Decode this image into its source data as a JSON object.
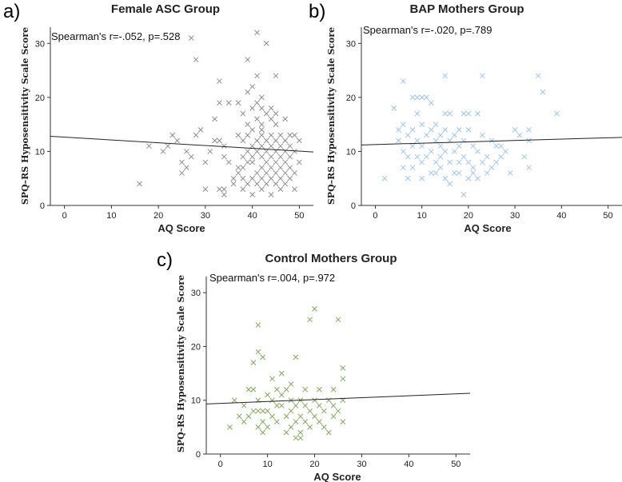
{
  "chart_data": [
    {
      "type": "scatter",
      "panel": "a)",
      "title": "Female ASC Group",
      "xlabel": "AQ Score",
      "ylabel": "SPQ–RS Hyposensitivity Scale Score",
      "annotation": "Spearman's r=-.052, p=.528",
      "xticks": [
        0,
        10,
        20,
        30,
        40,
        50
      ],
      "yticks": [
        0,
        10,
        20,
        30
      ],
      "xlim": [
        -3,
        53
      ],
      "ylim": [
        0,
        33
      ],
      "marker_color": "#8c8c8c",
      "regression": {
        "x0": -3,
        "y0": 12.8,
        "x1": 53,
        "y1": 9.9
      },
      "points": [
        [
          16,
          4
        ],
        [
          18,
          11
        ],
        [
          21,
          10
        ],
        [
          22,
          11
        ],
        [
          23,
          13
        ],
        [
          24,
          12
        ],
        [
          25,
          6
        ],
        [
          25,
          8
        ],
        [
          26,
          7
        ],
        [
          26,
          10
        ],
        [
          27,
          31
        ],
        [
          27,
          9
        ],
        [
          28,
          13
        ],
        [
          28,
          27
        ],
        [
          29,
          14
        ],
        [
          30,
          3
        ],
        [
          30,
          8
        ],
        [
          31,
          10
        ],
        [
          32,
          12
        ],
        [
          32,
          16
        ],
        [
          33,
          12
        ],
        [
          33,
          19
        ],
        [
          33,
          23
        ],
        [
          33,
          3
        ],
        [
          34,
          3
        ],
        [
          34,
          2
        ],
        [
          34,
          9
        ],
        [
          34,
          11
        ],
        [
          35,
          19
        ],
        [
          35,
          8
        ],
        [
          36,
          4
        ],
        [
          36,
          5
        ],
        [
          37,
          6
        ],
        [
          37,
          7
        ],
        [
          37,
          19
        ],
        [
          37,
          13
        ],
        [
          38,
          5
        ],
        [
          38,
          7
        ],
        [
          38,
          9
        ],
        [
          38,
          12
        ],
        [
          38,
          17
        ],
        [
          38,
          3
        ],
        [
          39,
          4
        ],
        [
          39,
          8
        ],
        [
          39,
          10
        ],
        [
          39,
          13
        ],
        [
          39,
          15
        ],
        [
          39,
          21
        ],
        [
          39,
          27
        ],
        [
          40,
          2
        ],
        [
          40,
          5
        ],
        [
          40,
          9
        ],
        [
          40,
          11
        ],
        [
          40,
          14
        ],
        [
          40,
          18
        ],
        [
          40,
          22
        ],
        [
          40,
          8
        ],
        [
          41,
          4
        ],
        [
          41,
          6
        ],
        [
          41,
          10
        ],
        [
          41,
          12
        ],
        [
          41,
          16
        ],
        [
          41,
          19
        ],
        [
          41,
          24
        ],
        [
          41,
          32
        ],
        [
          42,
          3
        ],
        [
          42,
          5
        ],
        [
          42,
          7
        ],
        [
          42,
          9
        ],
        [
          42,
          11
        ],
        [
          42,
          13
        ],
        [
          42,
          15
        ],
        [
          42,
          18
        ],
        [
          42,
          20
        ],
        [
          42,
          14
        ],
        [
          43,
          4
        ],
        [
          43,
          6
        ],
        [
          43,
          8
        ],
        [
          43,
          10
        ],
        [
          43,
          12
        ],
        [
          43,
          17
        ],
        [
          43,
          30
        ],
        [
          44,
          5
        ],
        [
          44,
          7
        ],
        [
          44,
          9
        ],
        [
          44,
          11
        ],
        [
          44,
          13
        ],
        [
          44,
          16
        ],
        [
          44,
          18
        ],
        [
          44,
          2
        ],
        [
          45,
          4
        ],
        [
          45,
          6
        ],
        [
          45,
          8
        ],
        [
          45,
          10
        ],
        [
          45,
          12
        ],
        [
          45,
          15
        ],
        [
          45,
          17
        ],
        [
          45,
          24
        ],
        [
          46,
          5
        ],
        [
          46,
          7
        ],
        [
          46,
          9
        ],
        [
          46,
          11
        ],
        [
          46,
          13
        ],
        [
          46,
          3
        ],
        [
          47,
          4
        ],
        [
          47,
          6
        ],
        [
          47,
          8
        ],
        [
          47,
          10
        ],
        [
          47,
          12
        ],
        [
          47,
          16
        ],
        [
          48,
          5
        ],
        [
          48,
          7
        ],
        [
          48,
          9
        ],
        [
          48,
          11
        ],
        [
          48,
          13
        ],
        [
          49,
          3
        ],
        [
          49,
          6
        ],
        [
          49,
          10
        ],
        [
          49,
          13
        ],
        [
          50,
          8
        ],
        [
          50,
          12
        ]
      ]
    },
    {
      "type": "scatter",
      "panel": "b)",
      "title": "BAP Mothers Group",
      "xlabel": "AQ Score",
      "ylabel": "SPQ–RS Hyposensitivity Scale Score",
      "annotation": "Spearman's r=-.020, p=.789",
      "xticks": [
        0,
        10,
        20,
        30,
        40,
        50
      ],
      "yticks": [
        0,
        10,
        20,
        30
      ],
      "xlim": [
        -3,
        53
      ],
      "ylim": [
        0,
        33
      ],
      "marker_color": "#9ec4e8",
      "regression": {
        "x0": -3,
        "y0": 11.2,
        "x1": 53,
        "y1": 12.6
      },
      "points": [
        [
          2,
          5
        ],
        [
          4,
          18
        ],
        [
          5,
          14
        ],
        [
          5,
          12
        ],
        [
          6,
          10
        ],
        [
          6,
          15
        ],
        [
          6,
          23
        ],
        [
          6,
          7
        ],
        [
          7,
          9
        ],
        [
          7,
          13
        ],
        [
          7,
          5
        ],
        [
          8,
          11
        ],
        [
          8,
          14
        ],
        [
          8,
          20
        ],
        [
          8,
          7
        ],
        [
          9,
          9
        ],
        [
          9,
          12
        ],
        [
          9,
          17
        ],
        [
          9,
          20
        ],
        [
          10,
          8
        ],
        [
          10,
          11
        ],
        [
          10,
          15
        ],
        [
          10,
          20
        ],
        [
          10,
          5
        ],
        [
          11,
          9
        ],
        [
          11,
          13
        ],
        [
          11,
          20
        ],
        [
          12,
          6
        ],
        [
          12,
          10
        ],
        [
          12,
          14
        ],
        [
          12,
          19
        ],
        [
          13,
          8
        ],
        [
          13,
          12
        ],
        [
          13,
          15
        ],
        [
          13,
          6
        ],
        [
          14,
          7
        ],
        [
          14,
          11
        ],
        [
          14,
          13
        ],
        [
          14,
          9
        ],
        [
          15,
          5
        ],
        [
          15,
          10
        ],
        [
          15,
          14
        ],
        [
          15,
          17
        ],
        [
          15,
          24
        ],
        [
          16,
          8
        ],
        [
          16,
          12
        ],
        [
          16,
          17
        ],
        [
          16,
          4
        ],
        [
          17,
          6
        ],
        [
          17,
          10
        ],
        [
          17,
          13
        ],
        [
          18,
          8
        ],
        [
          18,
          11
        ],
        [
          18,
          14
        ],
        [
          18,
          6
        ],
        [
          19,
          2
        ],
        [
          19,
          9
        ],
        [
          19,
          12
        ],
        [
          19,
          17
        ],
        [
          20,
          5
        ],
        [
          20,
          8
        ],
        [
          20,
          14
        ],
        [
          20,
          17
        ],
        [
          21,
          7
        ],
        [
          21,
          11
        ],
        [
          21,
          6
        ],
        [
          22,
          5
        ],
        [
          22,
          10
        ],
        [
          22,
          17
        ],
        [
          23,
          8
        ],
        [
          23,
          13
        ],
        [
          23,
          24
        ],
        [
          24,
          6
        ],
        [
          24,
          9
        ],
        [
          25,
          7
        ],
        [
          25,
          12
        ],
        [
          26,
          11
        ],
        [
          26,
          8
        ],
        [
          27,
          9
        ],
        [
          27,
          11
        ],
        [
          28,
          10
        ],
        [
          29,
          6
        ],
        [
          30,
          14
        ],
        [
          31,
          13
        ],
        [
          32,
          9
        ],
        [
          33,
          7
        ],
        [
          33,
          12
        ],
        [
          33,
          14
        ],
        [
          35,
          24
        ],
        [
          36,
          21
        ],
        [
          39,
          17
        ]
      ]
    },
    {
      "type": "scatter",
      "panel": "c)",
      "title": "Control Mothers Group",
      "xlabel": "AQ Score",
      "ylabel": "SPQ–RS Hyposensitivity Scale Score",
      "annotation": "Spearman's r=.004, p=.972",
      "xticks": [
        0,
        10,
        20,
        30,
        40,
        50
      ],
      "yticks": [
        0,
        10,
        20,
        30
      ],
      "xlim": [
        -3,
        53
      ],
      "ylim": [
        0,
        33
      ],
      "marker_color": "#7fa85c",
      "regression": {
        "x0": -3,
        "y0": 9.3,
        "x1": 53,
        "y1": 11.3
      },
      "points": [
        [
          2,
          5
        ],
        [
          3,
          10
        ],
        [
          4,
          7
        ],
        [
          5,
          6
        ],
        [
          5,
          9
        ],
        [
          6,
          7
        ],
        [
          6,
          12
        ],
        [
          7,
          8
        ],
        [
          7,
          12
        ],
        [
          7,
          17
        ],
        [
          8,
          5
        ],
        [
          8,
          8
        ],
        [
          8,
          10
        ],
        [
          8,
          19
        ],
        [
          8,
          24
        ],
        [
          9,
          4
        ],
        [
          9,
          6
        ],
        [
          9,
          8
        ],
        [
          9,
          18
        ],
        [
          10,
          5
        ],
        [
          10,
          8
        ],
        [
          10,
          11
        ],
        [
          11,
          7
        ],
        [
          11,
          10
        ],
        [
          11,
          14
        ],
        [
          12,
          6
        ],
        [
          12,
          9
        ],
        [
          12,
          12
        ],
        [
          13,
          9
        ],
        [
          13,
          11
        ],
        [
          13,
          15
        ],
        [
          14,
          4
        ],
        [
          14,
          7
        ],
        [
          14,
          12
        ],
        [
          15,
          5
        ],
        [
          15,
          8
        ],
        [
          15,
          10
        ],
        [
          15,
          13
        ],
        [
          16,
          3
        ],
        [
          16,
          6
        ],
        [
          16,
          9
        ],
        [
          16,
          18
        ],
        [
          17,
          3
        ],
        [
          17,
          7
        ],
        [
          17,
          10
        ],
        [
          17,
          4
        ],
        [
          18,
          6
        ],
        [
          18,
          9
        ],
        [
          18,
          12
        ],
        [
          19,
          5
        ],
        [
          19,
          8
        ],
        [
          19,
          25
        ],
        [
          20,
          7
        ],
        [
          20,
          10
        ],
        [
          20,
          27
        ],
        [
          21,
          6
        ],
        [
          21,
          9
        ],
        [
          21,
          12
        ],
        [
          22,
          5
        ],
        [
          22,
          8
        ],
        [
          23,
          4
        ],
        [
          23,
          10
        ],
        [
          24,
          7
        ],
        [
          24,
          9
        ],
        [
          24,
          12
        ],
        [
          25,
          8
        ],
        [
          25,
          25
        ],
        [
          26,
          6
        ],
        [
          26,
          10
        ],
        [
          26,
          14
        ],
        [
          26,
          16
        ]
      ]
    }
  ]
}
